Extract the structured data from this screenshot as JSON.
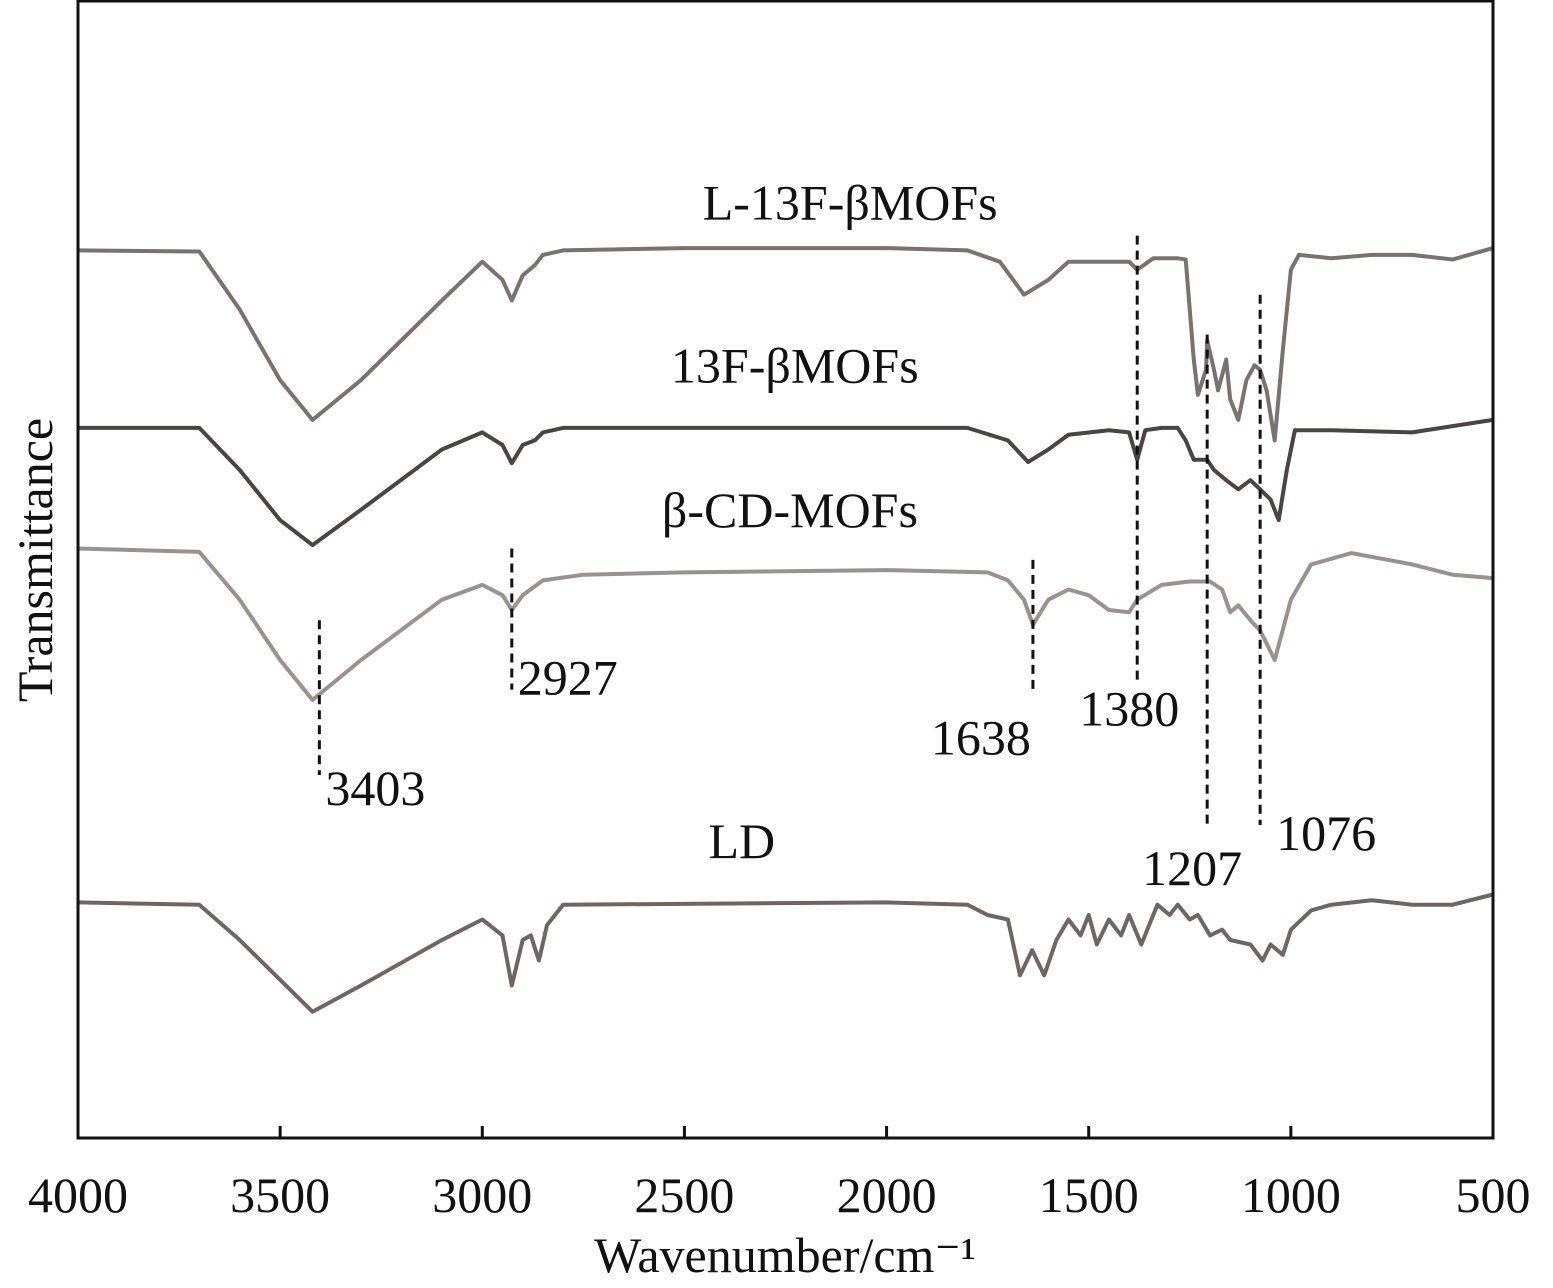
{
  "chart_data": {
    "type": "line",
    "title": "",
    "xlabel": "Wavenumber/cm⁻¹",
    "ylabel": "Transmittance",
    "xlim": [
      4000,
      500
    ],
    "ylim": [
      0,
      100
    ],
    "xticks": [
      4000,
      3500,
      3000,
      2500,
      2000,
      1500,
      1000,
      500
    ],
    "xtick_labels": [
      "4000",
      "3500",
      "3000",
      "2500",
      "2000",
      "1500",
      "1000",
      "500"
    ],
    "grid": false,
    "legend": "inline labels above each curve",
    "series": [
      {
        "name": "L-13F-βMOFs",
        "color": "#7a7270",
        "label_x": 2090,
        "label_y": 80.7,
        "x": [
          4000,
          3700,
          3600,
          3500,
          3420,
          3300,
          3100,
          3000,
          2950,
          2927,
          2900,
          2870,
          2850,
          2800,
          2500,
          2000,
          1800,
          1720,
          1660,
          1600,
          1550,
          1450,
          1400,
          1380,
          1340,
          1280,
          1260,
          1240,
          1230,
          1210,
          1207,
          1190,
          1180,
          1160,
          1150,
          1130,
          1110,
          1090,
          1076,
          1060,
          1040,
          1020,
          1000,
          980,
          900,
          800,
          700,
          600,
          500
        ],
        "y": [
          78.0,
          77.9,
          72.8,
          66.6,
          63.1,
          66.6,
          73.6,
          77.0,
          75.4,
          73.6,
          75.8,
          76.7,
          77.6,
          78.0,
          78.2,
          78.2,
          78.0,
          77.0,
          74.1,
          75.4,
          77.0,
          77.0,
          77.0,
          76.3,
          77.3,
          77.3,
          77.2,
          68.4,
          65.3,
          67.5,
          70.1,
          67.5,
          65.7,
          68.4,
          64.9,
          63.1,
          66.6,
          67.9,
          67.5,
          65.7,
          61.3,
          69.2,
          76.3,
          77.6,
          77.3,
          77.6,
          77.6,
          77.2,
          78.2
        ]
      },
      {
        "name": "13F-βMOFs",
        "color": "#4a4444",
        "label_x": 2227,
        "label_y": 66.4,
        "x": [
          4000,
          3700,
          3600,
          3500,
          3420,
          3300,
          3100,
          3000,
          2950,
          2927,
          2900,
          2870,
          2850,
          2800,
          2000,
          1800,
          1700,
          1650,
          1600,
          1550,
          1450,
          1400,
          1380,
          1360,
          1320,
          1280,
          1260,
          1240,
          1207,
          1190,
          1160,
          1130,
          1100,
          1076,
          1050,
          1030,
          1010,
          990,
          900,
          700,
          500
        ],
        "y": [
          62.4,
          62.4,
          58.7,
          54.3,
          52.1,
          55.2,
          60.5,
          62.0,
          60.9,
          59.3,
          60.9,
          61.3,
          62.0,
          62.4,
          62.4,
          62.4,
          61.3,
          59.4,
          60.5,
          61.8,
          62.2,
          62.0,
          59.6,
          62.2,
          62.4,
          62.4,
          61.3,
          59.6,
          59.6,
          58.7,
          57.8,
          57.0,
          57.8,
          57.0,
          56.1,
          54.3,
          58.7,
          62.2,
          62.2,
          62.0,
          63.1
        ]
      },
      {
        "name": "β-CD-MOFs",
        "color": "#9a9290",
        "label_x": 2239,
        "label_y": 53.7,
        "x": [
          4000,
          3700,
          3600,
          3500,
          3420,
          3300,
          3100,
          3000,
          2950,
          2927,
          2900,
          2850,
          2750,
          2500,
          2000,
          1750,
          1700,
          1660,
          1638,
          1600,
          1550,
          1500,
          1450,
          1400,
          1380,
          1320,
          1250,
          1200,
          1170,
          1150,
          1130,
          1100,
          1076,
          1040,
          1000,
          950,
          850,
          700,
          600,
          500
        ],
        "y": [
          51.8,
          51.5,
          47.3,
          42.0,
          38.5,
          42.0,
          47.3,
          48.6,
          47.7,
          46.4,
          47.7,
          49.0,
          49.5,
          49.7,
          49.9,
          49.7,
          49.0,
          47.3,
          45.1,
          47.3,
          48.2,
          47.7,
          46.4,
          46.2,
          47.3,
          48.6,
          48.9,
          48.9,
          48.2,
          46.2,
          46.8,
          45.5,
          44.6,
          42.0,
          47.3,
          50.4,
          51.4,
          50.4,
          49.5,
          49.2
        ]
      },
      {
        "name": "LD",
        "color": "#6e6664",
        "label_x": 2358,
        "label_y": 24.6,
        "x": [
          4000,
          3700,
          3600,
          3500,
          3420,
          3300,
          3100,
          3000,
          2950,
          2927,
          2900,
          2880,
          2860,
          2840,
          2800,
          2000,
          1800,
          1750,
          1700,
          1670,
          1640,
          1610,
          1580,
          1550,
          1520,
          1500,
          1480,
          1450,
          1420,
          1400,
          1370,
          1330,
          1300,
          1280,
          1250,
          1230,
          1200,
          1170,
          1150,
          1100,
          1070,
          1050,
          1020,
          1000,
          950,
          900,
          800,
          700,
          600,
          500
        ],
        "y": [
          20.7,
          20.5,
          17.4,
          13.9,
          11.1,
          13.4,
          17.4,
          19.2,
          17.8,
          13.4,
          17.4,
          17.8,
          15.6,
          18.7,
          20.5,
          20.7,
          20.5,
          19.6,
          19.2,
          14.3,
          16.5,
          14.3,
          17.4,
          19.2,
          17.8,
          19.6,
          17.0,
          19.2,
          17.8,
          19.6,
          17.0,
          20.5,
          19.6,
          20.5,
          19.2,
          19.6,
          17.8,
          18.3,
          17.4,
          17.0,
          15.6,
          17.0,
          16.1,
          18.3,
          20.0,
          20.5,
          20.9,
          20.5,
          20.5,
          21.4
        ]
      }
    ],
    "annotations": [
      {
        "label": "3403",
        "x": 3403,
        "y_top": 45.5,
        "y_bottom": 31.9
      },
      {
        "label": "2927",
        "x": 2927,
        "y_top": 51.8,
        "y_bottom": 39.4
      },
      {
        "label": "1638",
        "x": 1638,
        "y_top": 50.8,
        "y_bottom": 39.4
      },
      {
        "label": "1380",
        "x": 1380,
        "y_top": 79.3,
        "y_bottom": 40.2
      },
      {
        "label": "1207",
        "x": 1207,
        "y_top": 70.6,
        "y_bottom": 27.5
      },
      {
        "label": "1076",
        "x": 1076,
        "y_top": 74.1,
        "y_bottom": 27.5
      }
    ]
  }
}
